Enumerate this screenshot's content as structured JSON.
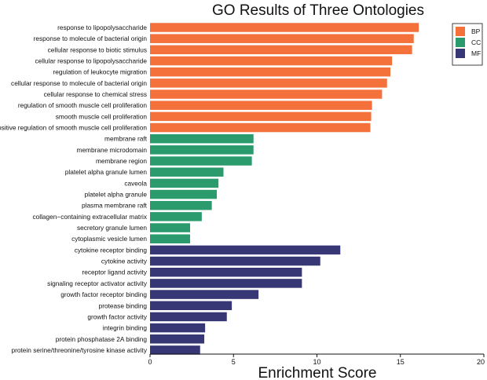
{
  "chart_data": {
    "type": "bar",
    "orientation": "horizontal",
    "title": "GO Results of Three Ontologies",
    "xlabel": "Enrichment Score",
    "ylabel": "",
    "xlim": [
      0,
      20
    ],
    "x_ticks": [
      0,
      5,
      10,
      15,
      20
    ],
    "grid": false,
    "legend_placement": "top-right",
    "series": [
      {
        "name": "BP",
        "color": "#f4713c"
      },
      {
        "name": "CC",
        "color": "#2b9b6e"
      },
      {
        "name": "MF",
        "color": "#373776"
      }
    ],
    "bars": [
      {
        "label": "response to lipopolysaccharide",
        "value": 16.1,
        "series": "BP"
      },
      {
        "label": "response to molecule of bacterial origin",
        "value": 15.8,
        "series": "BP"
      },
      {
        "label": "cellular response to biotic stimulus",
        "value": 15.7,
        "series": "BP"
      },
      {
        "label": "cellular response to lipopolysaccharide",
        "value": 14.5,
        "series": "BP"
      },
      {
        "label": "regulation of leukocyte migration",
        "value": 14.4,
        "series": "BP"
      },
      {
        "label": "cellular response to molecule of bacterial origin",
        "value": 14.2,
        "series": "BP"
      },
      {
        "label": "cellular response to chemical stress",
        "value": 13.9,
        "series": "BP"
      },
      {
        "label": "regulation of smooth muscle cell proliferation",
        "value": 13.3,
        "series": "BP"
      },
      {
        "label": "smooth muscle cell proliferation",
        "value": 13.25,
        "series": "BP"
      },
      {
        "label": "positive regulation of smooth muscle cell proliferation",
        "value": 13.2,
        "series": "BP"
      },
      {
        "label": "membrane raft",
        "value": 6.2,
        "series": "CC"
      },
      {
        "label": "membrane microdomain",
        "value": 6.2,
        "series": "CC"
      },
      {
        "label": "membrane region",
        "value": 6.1,
        "series": "CC"
      },
      {
        "label": "platelet alpha granule lumen",
        "value": 4.4,
        "series": "CC"
      },
      {
        "label": "caveola",
        "value": 4.1,
        "series": "CC"
      },
      {
        "label": "platelet alpha granule",
        "value": 4.0,
        "series": "CC"
      },
      {
        "label": "plasma membrane raft",
        "value": 3.7,
        "series": "CC"
      },
      {
        "label": "collagen−containing extracellular matrix",
        "value": 3.1,
        "series": "CC"
      },
      {
        "label": "secretory granule lumen",
        "value": 2.4,
        "series": "CC"
      },
      {
        "label": "cytoplasmic vesicle lumen",
        "value": 2.4,
        "series": "CC"
      },
      {
        "label": "cytokine receptor binding",
        "value": 11.4,
        "series": "MF"
      },
      {
        "label": "cytokine activity",
        "value": 10.2,
        "series": "MF"
      },
      {
        "label": "receptor ligand activity",
        "value": 9.1,
        "series": "MF"
      },
      {
        "label": "signaling receptor activator activity",
        "value": 9.1,
        "series": "MF"
      },
      {
        "label": "growth factor receptor binding",
        "value": 6.5,
        "series": "MF"
      },
      {
        "label": "protease binding",
        "value": 4.9,
        "series": "MF"
      },
      {
        "label": "growth factor activity",
        "value": 4.6,
        "series": "MF"
      },
      {
        "label": "integrin binding",
        "value": 3.3,
        "series": "MF"
      },
      {
        "label": "protein phosphatase 2A binding",
        "value": 3.25,
        "series": "MF"
      },
      {
        "label": "protein serine/threonine/tyrosine kinase activity",
        "value": 3.0,
        "series": "MF"
      }
    ]
  }
}
